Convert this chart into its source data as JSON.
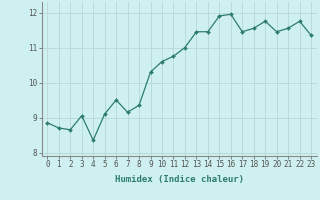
{
  "xlabel": "Humidex (Indice chaleur)",
  "x": [
    0,
    1,
    2,
    3,
    4,
    5,
    6,
    7,
    8,
    9,
    10,
    11,
    12,
    13,
    14,
    15,
    16,
    17,
    18,
    19,
    20,
    21,
    22,
    23
  ],
  "y": [
    8.85,
    8.7,
    8.65,
    9.05,
    8.35,
    9.1,
    9.5,
    9.15,
    9.35,
    10.3,
    10.6,
    10.75,
    11.0,
    11.45,
    11.45,
    11.9,
    11.95,
    11.45,
    11.55,
    11.75,
    11.45,
    11.55,
    11.75,
    11.35
  ],
  "line_color": "#2d7d6e",
  "marker": "D",
  "marker_size": 2.0,
  "bg_color": "#cff0f0",
  "grid_color": "#b8d8d8",
  "ylim": [
    7.9,
    12.3
  ],
  "xlim": [
    -0.5,
    23.5
  ],
  "yticks": [
    8,
    9,
    10,
    11,
    12
  ],
  "xticks": [
    0,
    1,
    2,
    3,
    4,
    5,
    6,
    7,
    8,
    9,
    10,
    11,
    12,
    13,
    14,
    15,
    16,
    17,
    18,
    19,
    20,
    21,
    22,
    23
  ],
  "xlabel_fontsize": 6.5,
  "tick_fontsize": 5.5,
  "linewidth": 0.9
}
